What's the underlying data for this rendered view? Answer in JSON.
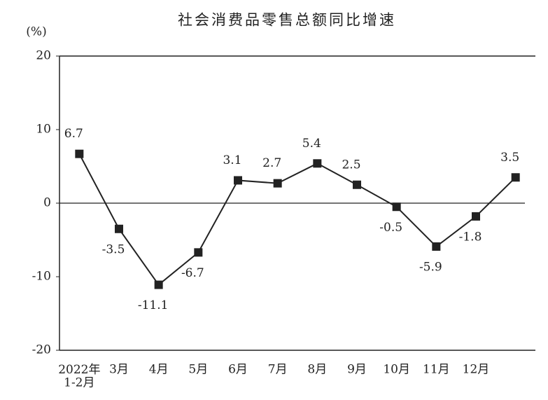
{
  "chart_data": {
    "type": "line",
    "title": "社会消费品零售总额同比增速",
    "y_unit": "(%)",
    "categories": [
      "2022年\n1-2月",
      "3月",
      "4月",
      "5月",
      "6月",
      "7月",
      "8月",
      "9月",
      "10月",
      "11月",
      "12月",
      null
    ],
    "series": [
      {
        "name": "社会消费品零售总额同比增速",
        "color": "#222222",
        "values": [
          6.7,
          -3.5,
          -11.1,
          -6.7,
          3.1,
          2.7,
          5.4,
          2.5,
          -0.5,
          -5.9,
          -1.8,
          3.5
        ]
      }
    ],
    "ylim": [
      -20,
      20
    ],
    "yticks": [
      -20,
      -10,
      0,
      10,
      20
    ],
    "grid": false,
    "zero_line": true,
    "legend": false
  }
}
